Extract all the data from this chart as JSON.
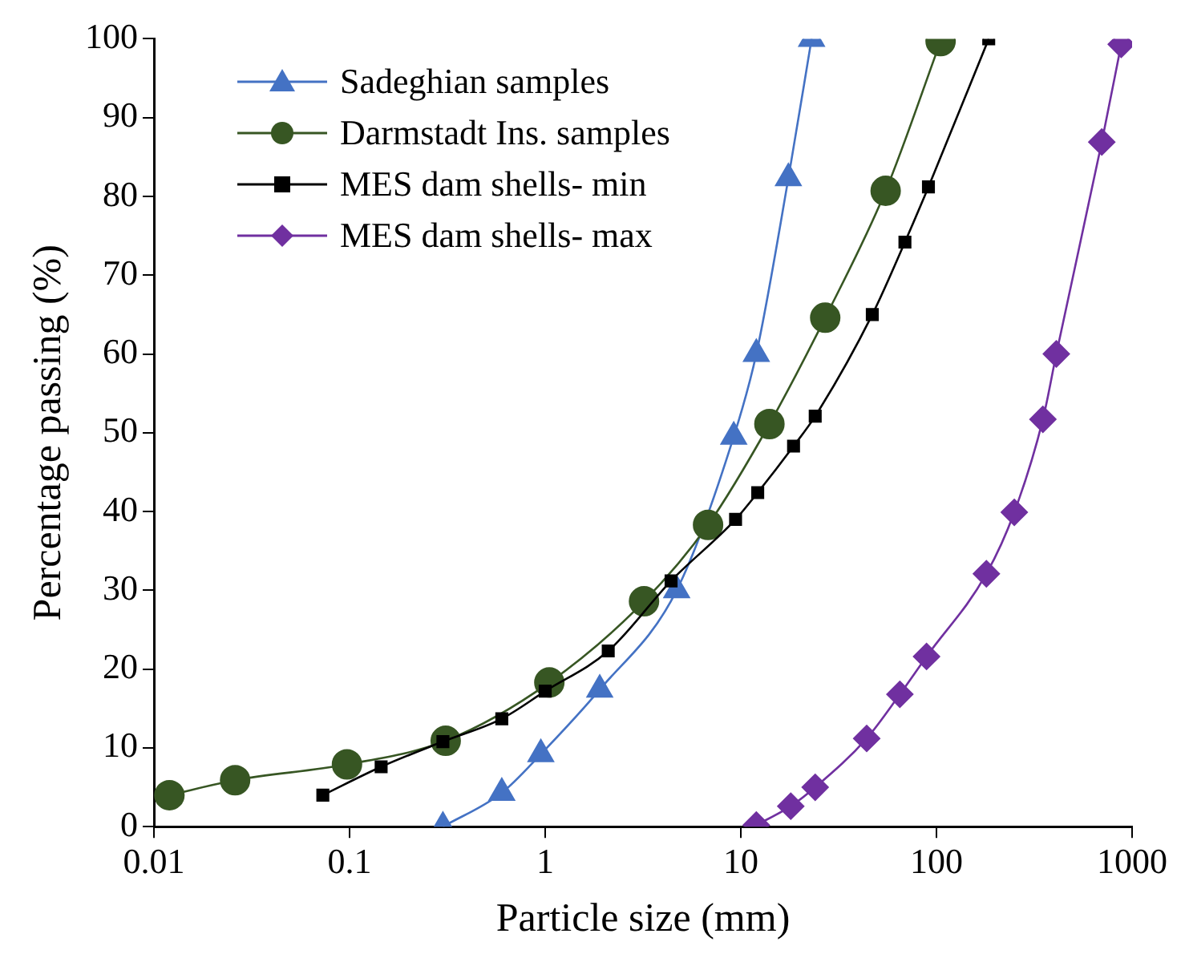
{
  "chart_data": {
    "type": "line",
    "xlabel": "Particle size (mm)",
    "ylabel": "Percentage passing (%)",
    "log": "x",
    "grid": false,
    "legend": "top left",
    "xlim": [
      0.01,
      1000
    ],
    "xticks": [
      0.01,
      0.1,
      1,
      10,
      100,
      1000
    ],
    "ylim": [
      0,
      100
    ],
    "yticks": [
      0,
      10,
      20,
      30,
      40,
      50,
      60,
      70,
      80,
      90,
      100
    ],
    "series": [
      {
        "name": "Sadeghian samples",
        "color": "#4472c4",
        "marker": "triangle",
        "x": [
          0.3,
          0.6,
          0.95,
          1.9,
          4.7,
          9.2,
          12,
          17.5,
          23
        ],
        "values": [
          0,
          4.3,
          9.2,
          17.4,
          30,
          49.5,
          60,
          82.3,
          100
        ]
      },
      {
        "name": "Darmstadt Ins. samples",
        "color": "#375623",
        "marker": "circle",
        "x": [
          0.012,
          0.026,
          0.097,
          0.31,
          1.05,
          3.2,
          6.8,
          14,
          27,
          55,
          105
        ],
        "values": [
          4,
          5.9,
          7.9,
          10.9,
          18.3,
          28.6,
          38.3,
          51.1,
          64.6,
          80.7,
          99.7
        ]
      },
      {
        "name": "MES dam shells- min",
        "color": "#000000",
        "marker": "square",
        "x": [
          0.073,
          0.145,
          0.3,
          0.6,
          1,
          2.1,
          4.4,
          9.4,
          12.2,
          18.6,
          24,
          47,
          69,
          91,
          185
        ],
        "values": [
          4,
          7.6,
          10.8,
          13.7,
          17.2,
          22.3,
          31.2,
          39,
          42.4,
          48.3,
          52.1,
          65,
          74.2,
          81.2,
          100
        ]
      },
      {
        "name": "MES dam shells- max",
        "color": "#7030a0",
        "marker": "diamond",
        "x": [
          12,
          18,
          24,
          44,
          65,
          89,
          180,
          250,
          350,
          410,
          700,
          880
        ],
        "values": [
          0.2,
          2.6,
          5,
          11.2,
          16.8,
          21.6,
          32.1,
          39.9,
          51.7,
          60,
          86.9,
          99.3
        ]
      }
    ]
  }
}
